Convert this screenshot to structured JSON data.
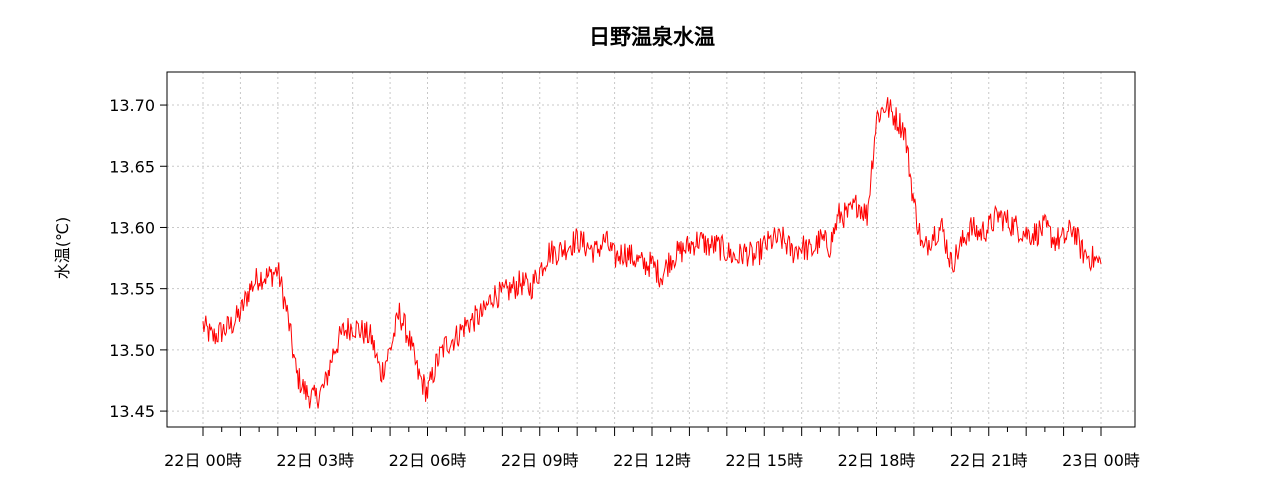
{
  "chart_data": {
    "type": "line",
    "title": "日野温泉水温",
    "xlabel": "",
    "ylabel": "水温(℃)",
    "ylim": [
      13.437,
      13.727
    ],
    "yticks": [
      13.45,
      13.5,
      13.55,
      13.6,
      13.65,
      13.7
    ],
    "ytick_labels": [
      "13.45",
      "13.50",
      "13.55",
      "13.60",
      "13.65",
      "13.70"
    ],
    "x_range_hours": [
      0,
      24
    ],
    "xticks_hours": [
      0,
      3,
      6,
      9,
      12,
      15,
      18,
      21,
      24
    ],
    "xtick_labels": [
      "22日 00時",
      "22日 03時",
      "22日 06時",
      "22日 09時",
      "22日 12時",
      "22日 15時",
      "22日 18時",
      "22日 21時",
      "23日 00時"
    ],
    "minor_ticks": "hourly-and-half",
    "grid": true,
    "series": [
      {
        "color": "#ff0000",
        "x_hours": [
          0,
          0.25,
          0.5,
          0.75,
          1.0,
          1.25,
          1.5,
          1.75,
          2.0,
          2.25,
          2.5,
          2.75,
          3.0,
          3.25,
          3.5,
          3.75,
          4.0,
          4.25,
          4.5,
          4.75,
          5.0,
          5.25,
          5.5,
          5.75,
          6.0,
          6.25,
          6.5,
          6.75,
          7.0,
          7.25,
          7.5,
          7.75,
          8.0,
          8.25,
          8.5,
          8.75,
          9.0,
          9.25,
          9.5,
          9.75,
          10.0,
          10.25,
          10.5,
          10.75,
          11.0,
          11.25,
          11.5,
          11.75,
          12.0,
          12.25,
          12.5,
          12.75,
          13.0,
          13.25,
          13.5,
          13.75,
          14.0,
          14.25,
          14.5,
          14.75,
          15.0,
          15.25,
          15.5,
          15.75,
          16.0,
          16.25,
          16.5,
          16.75,
          17.0,
          17.25,
          17.5,
          17.75,
          18.0,
          18.25,
          18.5,
          18.75,
          19.0,
          19.25,
          19.5,
          19.75,
          20.0,
          20.25,
          20.5,
          20.75,
          21.0,
          21.25,
          21.5,
          21.75,
          22.0,
          22.25,
          22.5,
          22.75,
          23.0,
          23.25,
          23.5,
          23.75,
          24.0
        ],
        "values": [
          13.52,
          13.51,
          13.515,
          13.52,
          13.53,
          13.55,
          13.56,
          13.56,
          13.565,
          13.53,
          13.48,
          13.465,
          13.46,
          13.47,
          13.5,
          13.515,
          13.52,
          13.515,
          13.51,
          13.48,
          13.5,
          13.53,
          13.51,
          13.48,
          13.465,
          13.49,
          13.505,
          13.51,
          13.52,
          13.525,
          13.53,
          13.545,
          13.545,
          13.55,
          13.555,
          13.55,
          13.565,
          13.58,
          13.58,
          13.585,
          13.59,
          13.585,
          13.58,
          13.59,
          13.575,
          13.58,
          13.575,
          13.57,
          13.57,
          13.56,
          13.575,
          13.58,
          13.585,
          13.59,
          13.585,
          13.585,
          13.58,
          13.575,
          13.58,
          13.575,
          13.585,
          13.59,
          13.59,
          13.58,
          13.585,
          13.58,
          13.59,
          13.585,
          13.61,
          13.61,
          13.62,
          13.61,
          13.69,
          13.7,
          13.69,
          13.68,
          13.62,
          13.58,
          13.595,
          13.6,
          13.57,
          13.585,
          13.6,
          13.595,
          13.6,
          13.61,
          13.605,
          13.6,
          13.595,
          13.595,
          13.6,
          13.59,
          13.59,
          13.6,
          13.58,
          13.575,
          13.57
        ]
      }
    ]
  }
}
